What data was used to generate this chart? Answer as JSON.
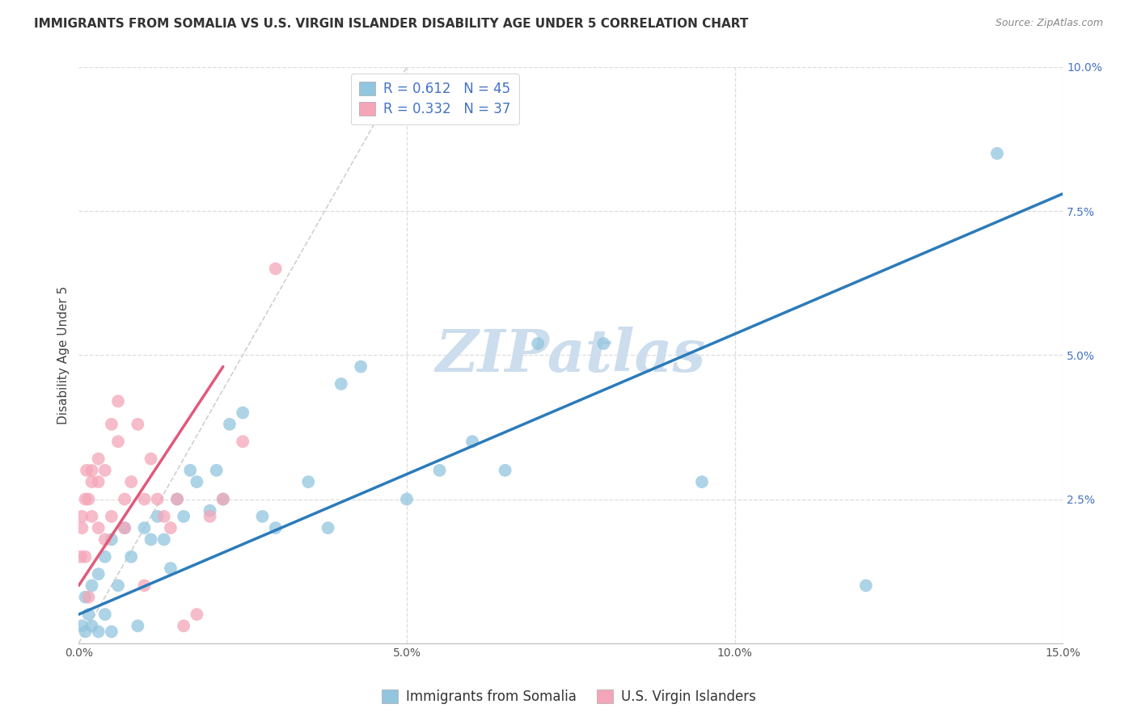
{
  "title": "IMMIGRANTS FROM SOMALIA VS U.S. VIRGIN ISLANDER DISABILITY AGE UNDER 5 CORRELATION CHART",
  "source": "Source: ZipAtlas.com",
  "ylabel": "Disability Age Under 5",
  "xlim": [
    0,
    0.15
  ],
  "ylim": [
    0,
    0.1
  ],
  "xticks": [
    0.0,
    0.05,
    0.1,
    0.15
  ],
  "xticklabels": [
    "0.0%",
    "5.0%",
    "10.0%",
    "15.0%"
  ],
  "yticks": [
    0.0,
    0.025,
    0.05,
    0.075,
    0.1
  ],
  "yticklabels": [
    "",
    "2.5%",
    "5.0%",
    "7.5%",
    "10.0%"
  ],
  "blue_R": 0.612,
  "blue_N": 45,
  "pink_R": 0.332,
  "pink_N": 37,
  "blue_color": "#92c5de",
  "pink_color": "#f4a6b8",
  "blue_line_color": "#2b7bba",
  "pink_line_color": "#e05a7a",
  "ref_line_color": "#d0d0d0",
  "legend_blue_label": "Immigrants from Somalia",
  "legend_pink_label": "U.S. Virgin Islanders",
  "blue_scatter_x": [
    0.0005,
    0.001,
    0.001,
    0.0015,
    0.002,
    0.002,
    0.003,
    0.003,
    0.004,
    0.004,
    0.005,
    0.005,
    0.006,
    0.007,
    0.008,
    0.009,
    0.01,
    0.011,
    0.012,
    0.013,
    0.014,
    0.015,
    0.016,
    0.017,
    0.018,
    0.02,
    0.021,
    0.022,
    0.023,
    0.025,
    0.028,
    0.03,
    0.035,
    0.038,
    0.04,
    0.043,
    0.05,
    0.055,
    0.06,
    0.065,
    0.07,
    0.08,
    0.095,
    0.12,
    0.14
  ],
  "blue_scatter_y": [
    0.003,
    0.002,
    0.008,
    0.005,
    0.003,
    0.01,
    0.002,
    0.012,
    0.005,
    0.015,
    0.002,
    0.018,
    0.01,
    0.02,
    0.015,
    0.003,
    0.02,
    0.018,
    0.022,
    0.018,
    0.013,
    0.025,
    0.022,
    0.03,
    0.028,
    0.023,
    0.03,
    0.025,
    0.038,
    0.04,
    0.022,
    0.02,
    0.028,
    0.02,
    0.045,
    0.048,
    0.025,
    0.03,
    0.035,
    0.03,
    0.052,
    0.052,
    0.028,
    0.01,
    0.085
  ],
  "pink_scatter_x": [
    0.0003,
    0.0005,
    0.0005,
    0.001,
    0.001,
    0.0012,
    0.0015,
    0.0015,
    0.002,
    0.002,
    0.002,
    0.003,
    0.003,
    0.003,
    0.004,
    0.004,
    0.005,
    0.005,
    0.006,
    0.006,
    0.007,
    0.007,
    0.008,
    0.009,
    0.01,
    0.01,
    0.011,
    0.012,
    0.013,
    0.014,
    0.015,
    0.016,
    0.018,
    0.02,
    0.022,
    0.025,
    0.03
  ],
  "pink_scatter_y": [
    0.015,
    0.02,
    0.022,
    0.025,
    0.015,
    0.03,
    0.008,
    0.025,
    0.03,
    0.022,
    0.028,
    0.032,
    0.02,
    0.028,
    0.018,
    0.03,
    0.038,
    0.022,
    0.042,
    0.035,
    0.025,
    0.02,
    0.028,
    0.038,
    0.01,
    0.025,
    0.032,
    0.025,
    0.022,
    0.02,
    0.025,
    0.003,
    0.005,
    0.022,
    0.025,
    0.035,
    0.065
  ],
  "blue_line_x": [
    0.0,
    0.15
  ],
  "blue_line_y": [
    0.005,
    0.078
  ],
  "pink_line_x": [
    0.0,
    0.022
  ],
  "pink_line_y": [
    0.01,
    0.048
  ],
  "ref_line_x": [
    0.0,
    0.05
  ],
  "ref_line_y": [
    0.0,
    0.1
  ],
  "watermark": "ZIPatlas",
  "watermark_color": "#ccdded",
  "background_color": "#ffffff",
  "grid_color": "#dddddd",
  "title_fontsize": 11,
  "axis_label_fontsize": 11,
  "tick_fontsize": 10,
  "legend_fontsize": 12,
  "source_fontsize": 9,
  "right_tick_color": "#4472c4",
  "legend_R_color": "#4472c4",
  "legend_N_color": "#4472c4"
}
